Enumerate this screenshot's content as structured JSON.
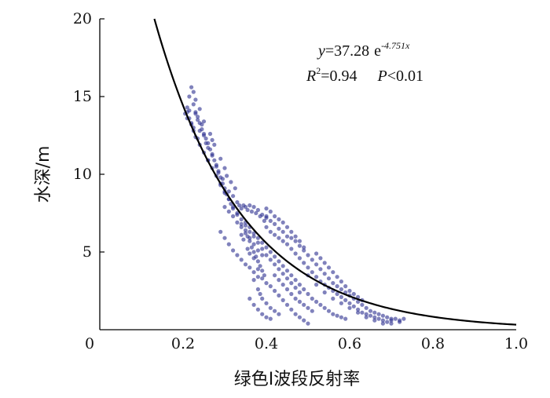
{
  "chart_data": {
    "type": "scatter",
    "xlabel": "绿色I波段反射率",
    "ylabel": "水深/m",
    "xlim": [
      0,
      1.0
    ],
    "ylim": [
      0,
      20
    ],
    "x_ticks": [
      "0",
      "0.2",
      "0.4",
      "0.6",
      "0.8",
      "1.0"
    ],
    "y_ticks": [
      "5",
      "10",
      "15",
      "20"
    ],
    "grid": false,
    "point_color": "#2b2f8f",
    "curve_color": "#000000",
    "fit": {
      "a": 37.28,
      "b": -4.751,
      "equation": {
        "y_sym": "y",
        "eq_coef": "=37.28",
        "base": "e",
        "exponent": "-4.751x"
      },
      "stats": {
        "r_sym": "R",
        "r_sup": "2",
        "r_val": "=0.94",
        "p_sym": "P",
        "p_val": "<0.01"
      }
    },
    "points": [
      [
        0.21,
        14.3
      ],
      [
        0.205,
        13.9
      ],
      [
        0.215,
        14.1
      ],
      [
        0.22,
        15.6
      ],
      [
        0.225,
        15.3
      ],
      [
        0.215,
        15.0
      ],
      [
        0.23,
        14.8
      ],
      [
        0.21,
        13.6
      ],
      [
        0.22,
        13.3
      ],
      [
        0.225,
        13.0
      ],
      [
        0.23,
        13.9
      ],
      [
        0.235,
        13.5
      ],
      [
        0.24,
        12.8
      ],
      [
        0.245,
        13.2
      ],
      [
        0.25,
        12.5
      ],
      [
        0.24,
        14.2
      ],
      [
        0.235,
        12.3
      ],
      [
        0.255,
        12.0
      ],
      [
        0.26,
        11.7
      ],
      [
        0.25,
        13.4
      ],
      [
        0.265,
        12.6
      ],
      [
        0.27,
        11.3
      ],
      [
        0.26,
        10.9
      ],
      [
        0.275,
        11.9
      ],
      [
        0.28,
        10.6
      ],
      [
        0.27,
        12.2
      ],
      [
        0.285,
        10.2
      ],
      [
        0.29,
        11.0
      ],
      [
        0.295,
        9.7
      ],
      [
        0.3,
        10.4
      ],
      [
        0.29,
        9.3
      ],
      [
        0.305,
        9.9
      ],
      [
        0.31,
        8.9
      ],
      [
        0.315,
        9.5
      ],
      [
        0.32,
        8.6
      ],
      [
        0.3,
        8.8
      ],
      [
        0.325,
        9.1
      ],
      [
        0.33,
        8.2
      ],
      [
        0.335,
        8.0
      ],
      [
        0.34,
        7.8
      ],
      [
        0.345,
        8.0
      ],
      [
        0.35,
        7.9
      ],
      [
        0.355,
        7.7
      ],
      [
        0.36,
        8.0
      ],
      [
        0.365,
        7.6
      ],
      [
        0.37,
        7.9
      ],
      [
        0.375,
        7.5
      ],
      [
        0.38,
        7.7
      ],
      [
        0.385,
        7.3
      ],
      [
        0.39,
        7.4
      ],
      [
        0.395,
        7.0
      ],
      [
        0.4,
        7.2
      ],
      [
        0.33,
        7.4
      ],
      [
        0.34,
        6.8
      ],
      [
        0.35,
        6.4
      ],
      [
        0.355,
        6.0
      ],
      [
        0.36,
        5.7
      ],
      [
        0.365,
        5.3
      ],
      [
        0.37,
        5.0
      ],
      [
        0.375,
        4.7
      ],
      [
        0.38,
        4.4
      ],
      [
        0.385,
        4.1
      ],
      [
        0.39,
        3.8
      ],
      [
        0.395,
        3.5
      ],
      [
        0.34,
        6.1
      ],
      [
        0.345,
        5.8
      ],
      [
        0.355,
        5.2
      ],
      [
        0.36,
        4.9
      ],
      [
        0.37,
        4.6
      ],
      [
        0.38,
        3.9
      ],
      [
        0.39,
        3.3
      ],
      [
        0.4,
        3.0
      ],
      [
        0.41,
        2.8
      ],
      [
        0.42,
        2.5
      ],
      [
        0.43,
        2.2
      ],
      [
        0.44,
        1.9
      ],
      [
        0.45,
        1.6
      ],
      [
        0.46,
        1.3
      ],
      [
        0.47,
        1.0
      ],
      [
        0.48,
        0.8
      ],
      [
        0.49,
        0.6
      ],
      [
        0.5,
        0.4
      ],
      [
        0.37,
        3.2
      ],
      [
        0.38,
        2.6
      ],
      [
        0.385,
        2.3
      ],
      [
        0.39,
        2.0
      ],
      [
        0.4,
        1.7
      ],
      [
        0.41,
        1.4
      ],
      [
        0.42,
        1.2
      ],
      [
        0.43,
        1.0
      ],
      [
        0.4,
        6.6
      ],
      [
        0.41,
        6.3
      ],
      [
        0.42,
        6.1
      ],
      [
        0.43,
        5.9
      ],
      [
        0.44,
        5.7
      ],
      [
        0.45,
        5.5
      ],
      [
        0.46,
        5.2
      ],
      [
        0.47,
        4.9
      ],
      [
        0.48,
        4.6
      ],
      [
        0.49,
        4.3
      ],
      [
        0.5,
        4.0
      ],
      [
        0.51,
        3.7
      ],
      [
        0.52,
        3.4
      ],
      [
        0.53,
        3.1
      ],
      [
        0.54,
        2.9
      ],
      [
        0.55,
        2.7
      ],
      [
        0.56,
        2.5
      ],
      [
        0.57,
        2.3
      ],
      [
        0.58,
        2.1
      ],
      [
        0.59,
        1.9
      ],
      [
        0.6,
        1.7
      ],
      [
        0.61,
        1.5
      ],
      [
        0.62,
        1.3
      ],
      [
        0.63,
        1.1
      ],
      [
        0.64,
        1.0
      ],
      [
        0.65,
        0.9
      ],
      [
        0.66,
        0.8
      ],
      [
        0.67,
        0.7
      ],
      [
        0.68,
        0.6
      ],
      [
        0.69,
        0.5
      ],
      [
        0.7,
        0.6
      ],
      [
        0.71,
        0.7
      ],
      [
        0.72,
        0.6
      ],
      [
        0.73,
        0.7
      ],
      [
        0.4,
        7.3
      ],
      [
        0.41,
        7.0
      ],
      [
        0.42,
        6.8
      ],
      [
        0.43,
        6.5
      ],
      [
        0.44,
        6.3
      ],
      [
        0.45,
        6.0
      ],
      [
        0.46,
        5.9
      ],
      [
        0.47,
        5.7
      ],
      [
        0.48,
        5.4
      ],
      [
        0.49,
        5.1
      ],
      [
        0.5,
        4.8
      ],
      [
        0.51,
        4.5
      ],
      [
        0.52,
        4.2
      ],
      [
        0.53,
        3.9
      ],
      [
        0.54,
        3.6
      ],
      [
        0.55,
        3.3
      ],
      [
        0.56,
        3.0
      ],
      [
        0.57,
        2.8
      ],
      [
        0.58,
        2.6
      ],
      [
        0.59,
        2.4
      ],
      [
        0.6,
        2.2
      ],
      [
        0.61,
        2.0
      ],
      [
        0.62,
        1.8
      ],
      [
        0.63,
        1.6
      ],
      [
        0.64,
        1.4
      ],
      [
        0.65,
        1.2
      ],
      [
        0.66,
        1.1
      ],
      [
        0.67,
        1.0
      ],
      [
        0.68,
        0.9
      ],
      [
        0.69,
        0.8
      ],
      [
        0.7,
        0.7
      ],
      [
        0.35,
        6.9
      ],
      [
        0.36,
        6.6
      ],
      [
        0.37,
        6.2
      ],
      [
        0.38,
        5.9
      ],
      [
        0.39,
        5.6
      ],
      [
        0.4,
        5.3
      ],
      [
        0.41,
        5.0
      ],
      [
        0.42,
        4.7
      ],
      [
        0.43,
        4.4
      ],
      [
        0.44,
        4.1
      ],
      [
        0.45,
        3.8
      ],
      [
        0.46,
        3.5
      ],
      [
        0.47,
        3.2
      ],
      [
        0.48,
        2.9
      ],
      [
        0.49,
        2.6
      ],
      [
        0.5,
        2.3
      ],
      [
        0.51,
        2.0
      ],
      [
        0.52,
        1.8
      ],
      [
        0.53,
        1.6
      ],
      [
        0.54,
        1.4
      ],
      [
        0.55,
        1.2
      ],
      [
        0.56,
        1.0
      ],
      [
        0.57,
        0.9
      ],
      [
        0.58,
        0.8
      ],
      [
        0.59,
        0.7
      ],
      [
        0.3,
        7.9
      ],
      [
        0.31,
        7.6
      ],
      [
        0.32,
        7.3
      ],
      [
        0.33,
        6.9
      ],
      [
        0.34,
        6.6
      ],
      [
        0.35,
        6.2
      ],
      [
        0.36,
        5.9
      ],
      [
        0.37,
        5.5
      ],
      [
        0.38,
        5.1
      ],
      [
        0.39,
        4.8
      ],
      [
        0.42,
        3.5
      ],
      [
        0.43,
        3.2
      ],
      [
        0.44,
        2.9
      ],
      [
        0.45,
        2.6
      ],
      [
        0.46,
        2.3
      ],
      [
        0.47,
        2.0
      ],
      [
        0.48,
        1.8
      ],
      [
        0.49,
        1.6
      ],
      [
        0.5,
        1.4
      ],
      [
        0.51,
        1.2
      ],
      [
        0.29,
        6.3
      ],
      [
        0.3,
        5.9
      ],
      [
        0.31,
        5.5
      ],
      [
        0.32,
        5.1
      ],
      [
        0.33,
        4.8
      ],
      [
        0.34,
        4.5
      ],
      [
        0.35,
        4.2
      ],
      [
        0.36,
        4.0
      ],
      [
        0.37,
        3.7
      ],
      [
        0.38,
        3.4
      ],
      [
        0.4,
        7.8
      ],
      [
        0.41,
        7.6
      ],
      [
        0.42,
        7.3
      ],
      [
        0.43,
        7.1
      ],
      [
        0.44,
        6.9
      ],
      [
        0.45,
        6.6
      ],
      [
        0.46,
        6.3
      ],
      [
        0.47,
        6.0
      ],
      [
        0.48,
        5.7
      ],
      [
        0.49,
        5.3
      ],
      [
        0.225,
        14.5
      ],
      [
        0.23,
        14.0
      ],
      [
        0.235,
        13.7
      ],
      [
        0.24,
        13.3
      ],
      [
        0.245,
        12.9
      ],
      [
        0.25,
        12.6
      ],
      [
        0.255,
        12.3
      ],
      [
        0.26,
        12.0
      ],
      [
        0.265,
        11.6
      ],
      [
        0.27,
        11.2
      ],
      [
        0.275,
        10.9
      ],
      [
        0.28,
        10.5
      ],
      [
        0.285,
        10.1
      ],
      [
        0.29,
        9.8
      ],
      [
        0.295,
        9.4
      ],
      [
        0.3,
        9.1
      ],
      [
        0.305,
        8.7
      ],
      [
        0.31,
        8.4
      ],
      [
        0.315,
        8.1
      ],
      [
        0.32,
        7.8
      ],
      [
        0.21,
        14.0
      ],
      [
        0.215,
        13.6
      ],
      [
        0.22,
        13.2
      ],
      [
        0.225,
        12.8
      ],
      [
        0.23,
        12.4
      ],
      [
        0.24,
        11.9
      ],
      [
        0.25,
        11.4
      ],
      [
        0.26,
        10.9
      ],
      [
        0.27,
        10.4
      ],
      [
        0.28,
        9.9
      ],
      [
        0.29,
        9.4
      ],
      [
        0.3,
        8.9
      ],
      [
        0.31,
        8.4
      ],
      [
        0.32,
        7.9
      ],
      [
        0.33,
        7.5
      ],
      [
        0.34,
        7.1
      ],
      [
        0.35,
        6.7
      ],
      [
        0.36,
        6.3
      ],
      [
        0.37,
        6.0
      ],
      [
        0.38,
        5.6
      ],
      [
        0.39,
        5.2
      ],
      [
        0.4,
        4.8
      ],
      [
        0.41,
        4.5
      ],
      [
        0.42,
        4.2
      ],
      [
        0.43,
        3.9
      ],
      [
        0.44,
        3.6
      ],
      [
        0.45,
        3.3
      ],
      [
        0.46,
        3.0
      ],
      [
        0.47,
        2.7
      ],
      [
        0.48,
        2.4
      ],
      [
        0.36,
        2.0
      ],
      [
        0.37,
        1.6
      ],
      [
        0.38,
        1.3
      ],
      [
        0.39,
        1.0
      ],
      [
        0.4,
        0.8
      ],
      [
        0.41,
        0.7
      ],
      [
        0.5,
        3.5
      ],
      [
        0.52,
        2.9
      ],
      [
        0.54,
        2.4
      ],
      [
        0.56,
        2.0
      ],
      [
        0.58,
        1.7
      ],
      [
        0.6,
        1.4
      ],
      [
        0.62,
        1.1
      ],
      [
        0.64,
        0.8
      ],
      [
        0.66,
        0.6
      ],
      [
        0.68,
        0.4
      ],
      [
        0.7,
        0.4
      ],
      [
        0.72,
        0.5
      ],
      [
        0.52,
        4.9
      ],
      [
        0.53,
        4.6
      ],
      [
        0.54,
        4.3
      ],
      [
        0.55,
        4.0
      ],
      [
        0.56,
        3.7
      ],
      [
        0.57,
        3.4
      ],
      [
        0.58,
        3.1
      ],
      [
        0.59,
        2.8
      ],
      [
        0.6,
        2.5
      ],
      [
        0.61,
        2.3
      ],
      [
        0.62,
        2.1
      ],
      [
        0.63,
        1.9
      ]
    ]
  }
}
